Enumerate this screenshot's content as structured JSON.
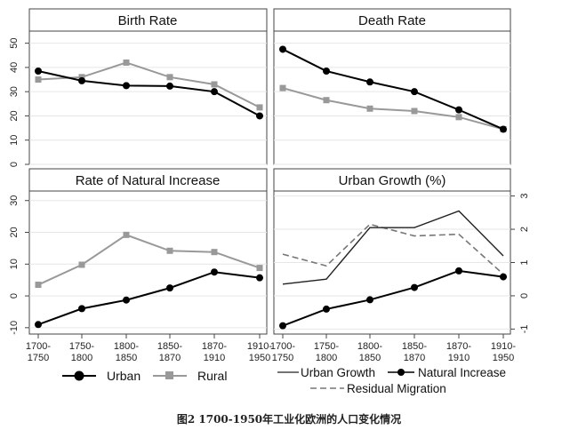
{
  "x_categories": [
    "1700-\n1750",
    "1750-\n1800",
    "1800-\n1850",
    "1850-\n1870",
    "1870-\n1910",
    "1910-\n1950"
  ],
  "panels": [
    {
      "title": "Birth Rate"
    },
    {
      "title": "Death Rate"
    },
    {
      "title": "Rate of Natural Increase"
    },
    {
      "title": "Urban Growth (%)"
    }
  ],
  "left_axis_ticks": [
    "0",
    "10",
    "20",
    "30",
    "40",
    "50"
  ],
  "left_axis_ticks_bottom": [
    "-10",
    "0",
    "10",
    "20",
    "30"
  ],
  "right_axis_ticks": [
    "-1",
    "0",
    "1",
    "2",
    "3"
  ],
  "legend_left": {
    "urban": "Urban",
    "rural": "Rural"
  },
  "legend_right": {
    "urban_growth": "Urban Growth",
    "natural_increase": "Natural Increase",
    "residual_migration": "Residual Migration"
  },
  "caption": "图2 1700-1950年工业化欧洲的人口变化情况",
  "colors": {
    "urban": "#000000",
    "rural": "#999999",
    "urban_growth": "#222222",
    "residual": "#777777"
  },
  "chart_data": [
    {
      "type": "line",
      "title": "Birth Rate",
      "categories": [
        "1700-1750",
        "1750-1800",
        "1800-1850",
        "1850-1870",
        "1870-1910",
        "1910-1950"
      ],
      "ylim": [
        0,
        50
      ],
      "series": [
        {
          "name": "Urban",
          "values": [
            38.5,
            34.5,
            32.5,
            32.3,
            30,
            20
          ]
        },
        {
          "name": "Rural",
          "values": [
            35,
            36,
            42,
            36,
            33,
            23.5
          ]
        }
      ]
    },
    {
      "type": "line",
      "title": "Death Rate",
      "categories": [
        "1700-1750",
        "1750-1800",
        "1800-1850",
        "1850-1870",
        "1870-1910",
        "1910-1950"
      ],
      "ylim": [
        0,
        50
      ],
      "series": [
        {
          "name": "Urban",
          "values": [
            47.5,
            38.5,
            34,
            30,
            22.5,
            14.5
          ]
        },
        {
          "name": "Rural",
          "values": [
            31.5,
            26.5,
            23,
            22,
            19.5,
            14.5
          ]
        }
      ]
    },
    {
      "type": "line",
      "title": "Rate of Natural Increase",
      "categories": [
        "1700-1750",
        "1750-1800",
        "1800-1850",
        "1850-1870",
        "1870-1910",
        "1910-1950"
      ],
      "ylim": [
        -10,
        30
      ],
      "series": [
        {
          "name": "Urban",
          "values": [
            -9,
            -4,
            -1.3,
            2.5,
            7.5,
            5.7
          ]
        },
        {
          "name": "Rural",
          "values": [
            3.5,
            9.8,
            19.2,
            14.2,
            13.8,
            8.8
          ]
        }
      ]
    },
    {
      "type": "line",
      "title": "Urban Growth (%)",
      "categories": [
        "1700-1750",
        "1750-1800",
        "1800-1850",
        "1850-1870",
        "1870-1910",
        "1910-1950"
      ],
      "ylim": [
        -1,
        3
      ],
      "series": [
        {
          "name": "Urban Growth",
          "values": [
            0.35,
            0.5,
            2.05,
            2.05,
            2.55,
            1.2
          ]
        },
        {
          "name": "Natural Increase",
          "values": [
            -0.9,
            -0.4,
            -0.12,
            0.25,
            0.75,
            0.57
          ]
        },
        {
          "name": "Residual Migration",
          "values": [
            1.25,
            0.9,
            2.15,
            1.8,
            1.85,
            0.65
          ]
        }
      ]
    }
  ]
}
